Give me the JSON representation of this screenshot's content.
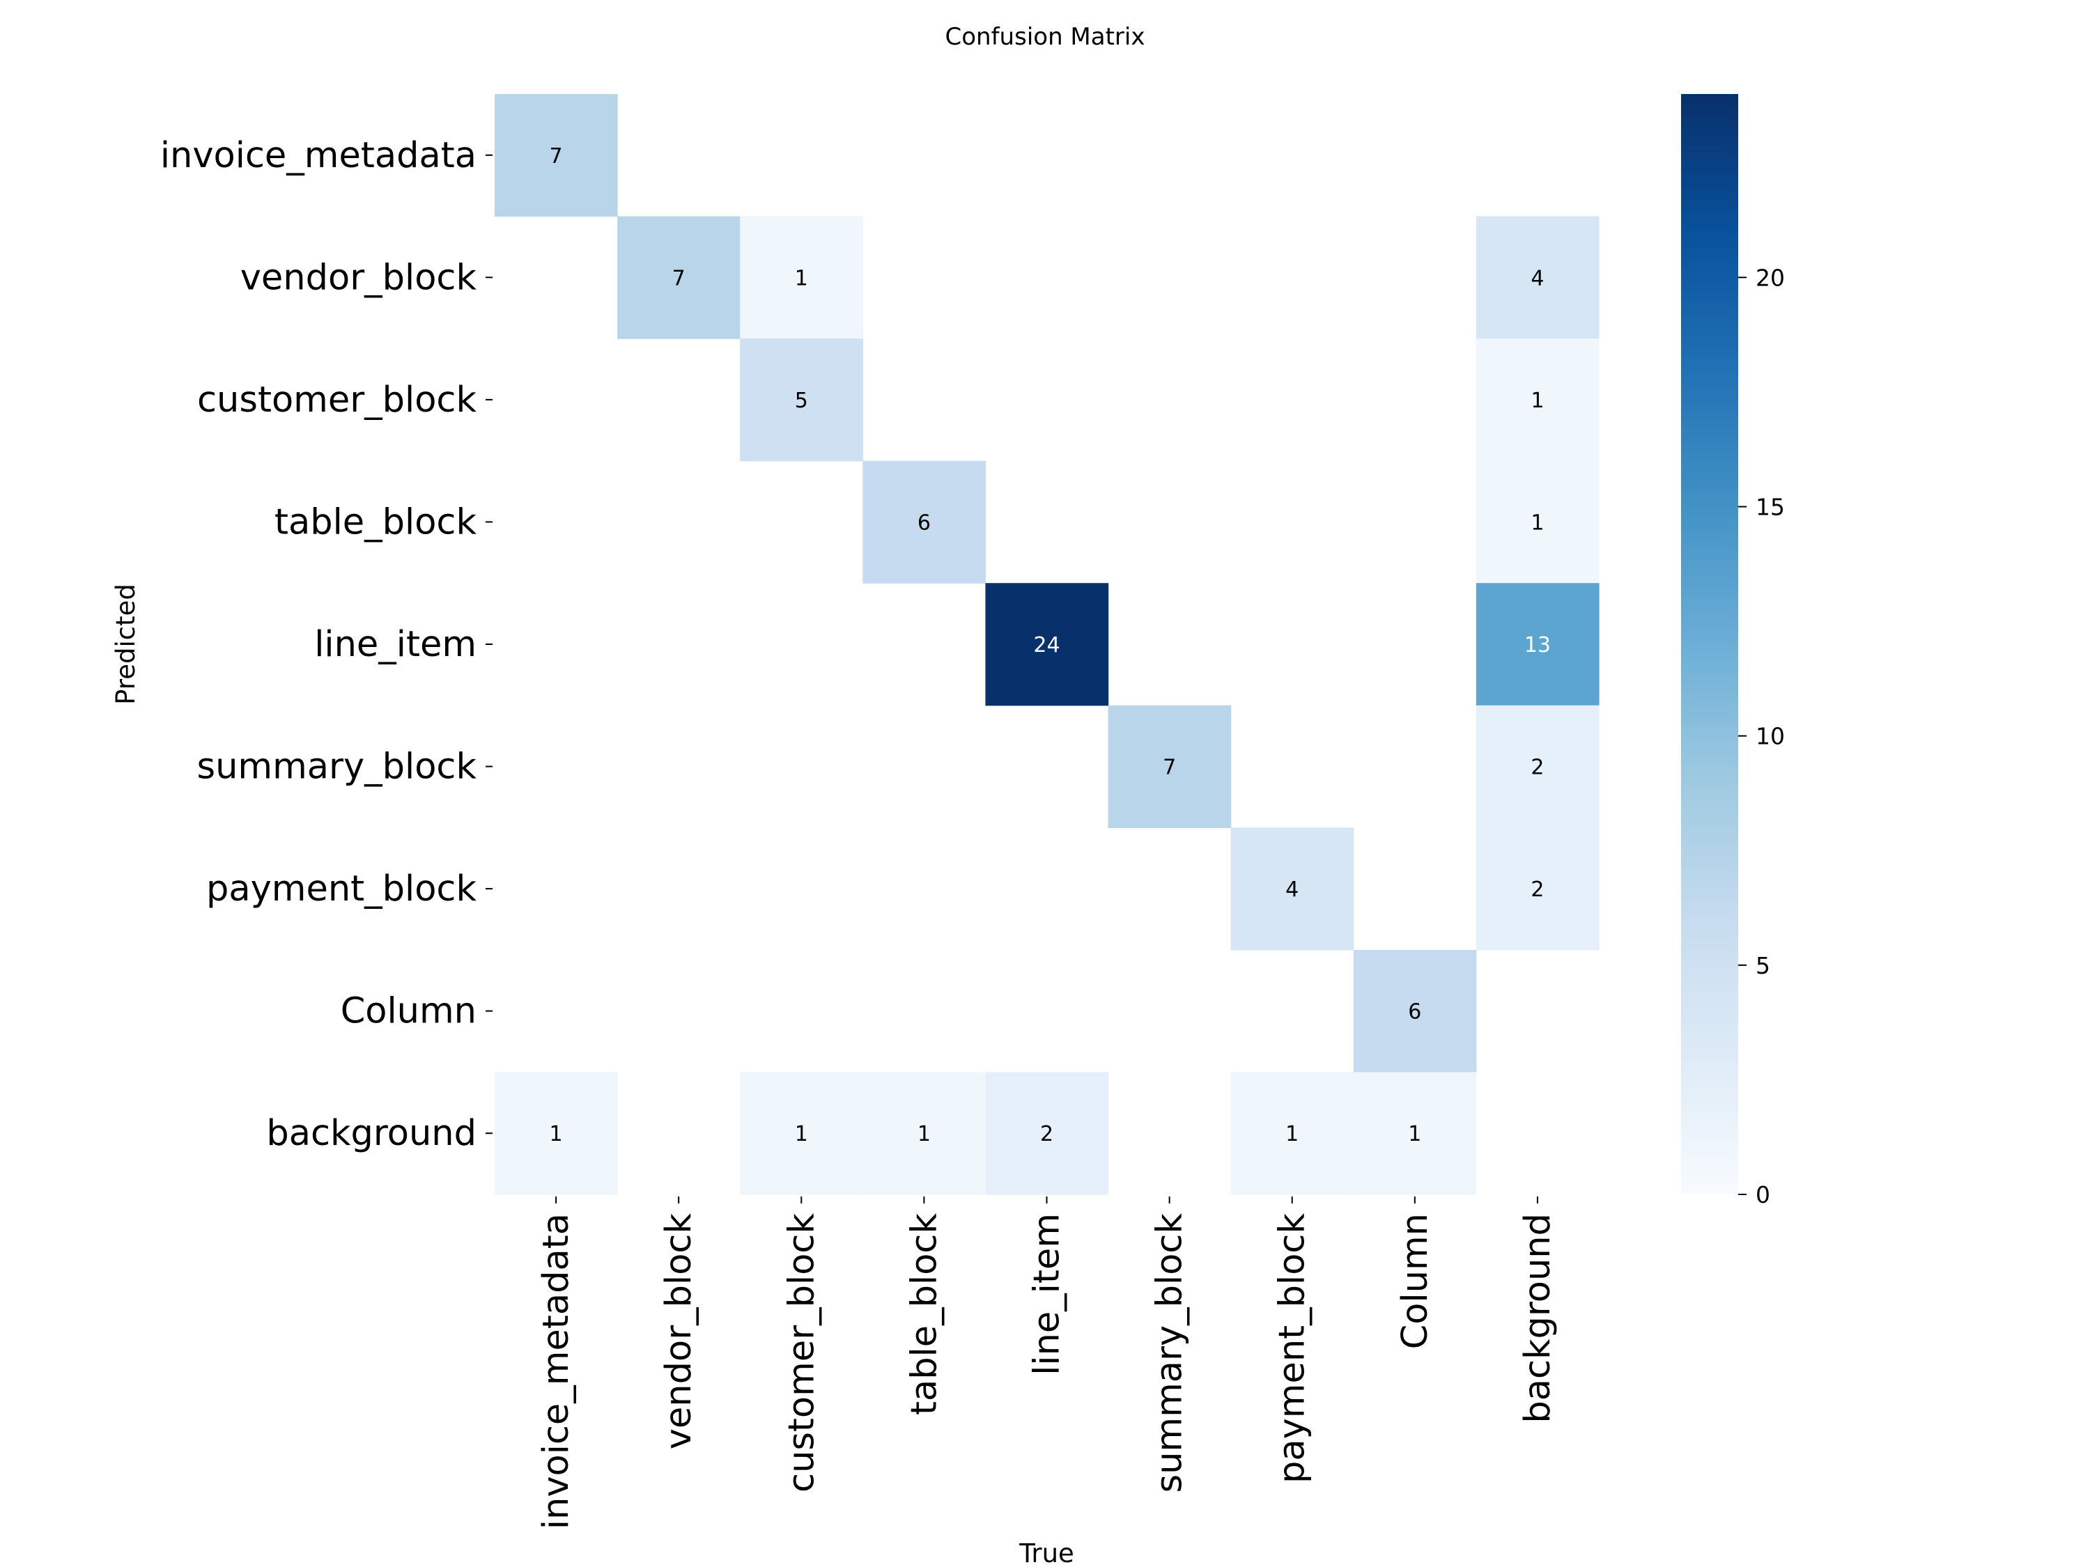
{
  "chart_data": {
    "type": "heatmap",
    "title": "Confusion Matrix",
    "xlabel": "True",
    "ylabel": "Predicted",
    "x_categories": [
      "invoice_metadata",
      "vendor_block",
      "customer_block",
      "table_block",
      "line_item",
      "summary_block",
      "payment_block",
      "Column",
      "background"
    ],
    "y_categories": [
      "invoice_metadata",
      "vendor_block",
      "customer_block",
      "table_block",
      "line_item",
      "summary_block",
      "payment_block",
      "Column",
      "background"
    ],
    "matrix": [
      [
        7,
        0,
        0,
        0,
        0,
        0,
        0,
        0,
        0
      ],
      [
        0,
        7,
        1,
        0,
        0,
        0,
        0,
        0,
        4
      ],
      [
        0,
        0,
        5,
        0,
        0,
        0,
        0,
        0,
        1
      ],
      [
        0,
        0,
        0,
        6,
        0,
        0,
        0,
        0,
        1
      ],
      [
        0,
        0,
        0,
        0,
        24,
        0,
        0,
        0,
        13
      ],
      [
        0,
        0,
        0,
        0,
        0,
        7,
        0,
        0,
        2
      ],
      [
        0,
        0,
        0,
        0,
        0,
        0,
        4,
        0,
        2
      ],
      [
        0,
        0,
        0,
        0,
        0,
        0,
        0,
        6,
        0
      ],
      [
        1,
        0,
        1,
        1,
        2,
        0,
        1,
        1,
        0
      ]
    ],
    "blank_zero_cells": true,
    "colorbar": {
      "colormap": "Blues",
      "vmin": 0,
      "vmax": 24,
      "ticks": [
        0,
        5,
        10,
        15,
        20
      ]
    }
  }
}
